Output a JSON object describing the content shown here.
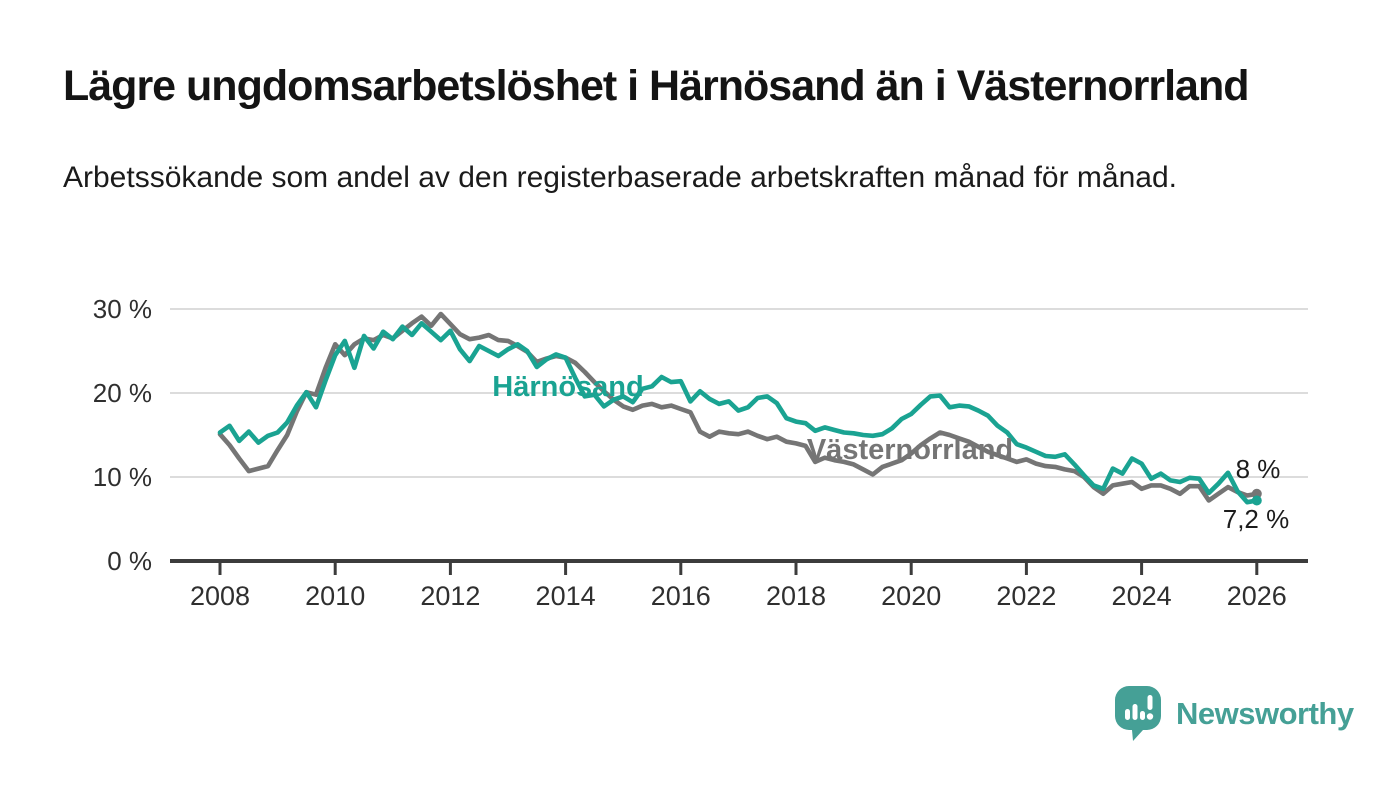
{
  "header": {
    "title": "Lägre ungdomsarbetslöshet i Härnösand än i Västernorrland",
    "subtitle": "Arbetssökande som andel av den registerbaserade arbetskraften månad för månad."
  },
  "footer": {
    "brand": "Newsworthy"
  },
  "colors": {
    "harnosand": "#1aa392",
    "vasternorrland": "#757575",
    "axis": "#3c3c3c",
    "grid": "#dcdcdc",
    "tick_text": "#2f2f2f",
    "end_label_text": "#1c1c1c",
    "brand_teal": "#45a096",
    "background": "#ffffff"
  },
  "chart_data": {
    "type": "line",
    "title": "Lägre ungdomsarbetslöshet i Härnösand än i Västernorrland",
    "subtitle": "Arbetssökande som andel av den registerbaserade arbetskraften månad för månad.",
    "xlabel": "",
    "ylabel": "",
    "x_start": 2008.0,
    "x_end": 2026.0,
    "x_step_years": 0.1667,
    "x_unit": "decimal year, one point every 2 months",
    "y_unit": "percent",
    "ylim": [
      0,
      32
    ],
    "xlim": [
      2007.1,
      2027.1
    ],
    "grid": "horizontal",
    "legend_position": "inline-labels-on-lines",
    "yticks": [
      {
        "value": 0,
        "label": "0 %"
      },
      {
        "value": 10,
        "label": "10 %"
      },
      {
        "value": 20,
        "label": "20 %"
      },
      {
        "value": 30,
        "label": "30 %"
      }
    ],
    "xticks": [
      2008,
      2010,
      2012,
      2014,
      2016,
      2018,
      2020,
      2022,
      2024,
      2026
    ],
    "series": [
      {
        "name": "Härnösand",
        "color": "#1aa392",
        "end_label": "7,2 %",
        "end_value": 7.2,
        "values": [
          15.3,
          16.1,
          14.3,
          15.4,
          14.1,
          14.9,
          15.3,
          16.5,
          18.5,
          20.1,
          18.3,
          21.5,
          24.5,
          26.2,
          23.0,
          26.8,
          25.3,
          27.3,
          26.4,
          27.9,
          26.9,
          28.3,
          27.3,
          26.3,
          27.4,
          25.2,
          23.8,
          25.6,
          25.0,
          24.4,
          25.2,
          25.8,
          25.0,
          23.1,
          24.0,
          24.6,
          24.2,
          21.8,
          19.6,
          19.8,
          18.4,
          19.2,
          19.6,
          18.9,
          20.5,
          20.8,
          21.9,
          21.3,
          21.4,
          19.0,
          20.2,
          19.3,
          18.7,
          19.0,
          17.9,
          18.3,
          19.4,
          19.6,
          18.8,
          17.0,
          16.6,
          16.4,
          15.5,
          15.9,
          15.6,
          15.3,
          15.2,
          15.0,
          14.9,
          15.1,
          15.8,
          16.9,
          17.5,
          18.6,
          19.6,
          19.7,
          18.3,
          18.5,
          18.4,
          17.9,
          17.3,
          16.1,
          15.3,
          13.9,
          13.5,
          13.0,
          12.5,
          12.4,
          12.7,
          11.5,
          10.2,
          9.0,
          8.6,
          11.0,
          10.4,
          12.2,
          11.6,
          9.8,
          10.4,
          9.6,
          9.4,
          9.9,
          9.8,
          8.1,
          9.2,
          10.5,
          8.3,
          7.0,
          7.2
        ]
      },
      {
        "name": "Västernorrland",
        "color": "#757575",
        "end_label": "8 %",
        "end_value": 8.0,
        "values": [
          15.1,
          13.8,
          12.2,
          10.7,
          11.0,
          11.3,
          13.2,
          15.0,
          17.8,
          20.1,
          19.8,
          23.0,
          25.8,
          24.5,
          25.8,
          26.5,
          26.3,
          26.9,
          26.5,
          27.4,
          28.3,
          29.1,
          28.0,
          29.4,
          28.2,
          27.0,
          26.4,
          26.6,
          26.9,
          26.3,
          26.2,
          25.6,
          24.9,
          23.7,
          24.1,
          24.4,
          24.2,
          23.6,
          22.5,
          21.3,
          20.2,
          19.2,
          18.4,
          18.0,
          18.5,
          18.7,
          18.3,
          18.5,
          18.1,
          17.7,
          15.4,
          14.8,
          15.4,
          15.2,
          15.1,
          15.4,
          14.9,
          14.5,
          14.8,
          14.2,
          14.0,
          13.7,
          11.8,
          12.3,
          12.0,
          11.8,
          11.5,
          10.9,
          10.3,
          11.2,
          11.6,
          12.0,
          12.8,
          13.8,
          14.6,
          15.3,
          15.0,
          14.6,
          14.2,
          13.6,
          13.0,
          12.6,
          12.2,
          11.8,
          12.1,
          11.6,
          11.3,
          11.2,
          10.9,
          10.7,
          10.0,
          8.8,
          8.0,
          9.0,
          9.2,
          9.4,
          8.6,
          9.0,
          9.0,
          8.6,
          8.0,
          8.9,
          8.9,
          7.2,
          8.0,
          8.8,
          8.2,
          7.8,
          8.0
        ]
      }
    ]
  }
}
